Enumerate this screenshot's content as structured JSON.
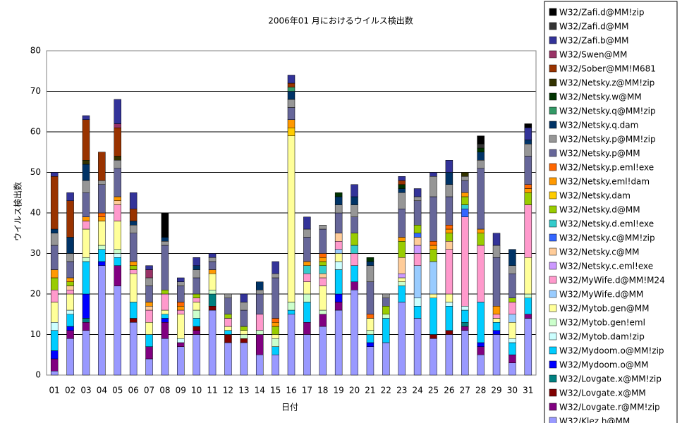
{
  "chart_data": {
    "type": "stacked_bar",
    "title": "2006年01 月におけるウイルス検出数",
    "y_label": "ウイルス検出数",
    "x_label": "日付",
    "categories": [
      "01",
      "02",
      "03",
      "04",
      "05",
      "06",
      "07",
      "08",
      "09",
      "10",
      "11",
      "12",
      "13",
      "14",
      "15",
      "16",
      "17",
      "18",
      "19",
      "20",
      "21",
      "22",
      "23",
      "24",
      "25",
      "26",
      "27",
      "28",
      "29",
      "30",
      "31"
    ],
    "ylim": [
      0,
      80
    ],
    "yticks": [
      0,
      10,
      20,
      30,
      40,
      50,
      60,
      70,
      80
    ],
    "grid": true,
    "legend": "right",
    "series": [
      {
        "name": "W32/Zafi.d@MM!zip",
        "color": "#000000",
        "values": [
          0,
          0,
          0,
          0,
          0,
          0,
          0,
          6,
          0,
          0,
          0,
          0,
          0,
          0,
          0,
          0,
          0,
          0,
          0,
          0,
          0,
          0,
          0,
          0,
          0,
          0,
          0,
          2,
          0,
          0,
          1
        ]
      },
      {
        "name": "W32/Zafi.d@MM",
        "color": "#333333",
        "values": [
          0,
          0,
          0,
          0,
          0,
          0,
          0,
          0,
          0,
          0,
          0,
          0,
          0,
          0,
          0,
          0,
          0,
          0,
          0,
          0,
          0,
          0,
          0,
          0,
          0,
          0,
          0,
          1,
          0,
          0,
          0
        ]
      },
      {
        "name": "W32/Zafi.b@MM",
        "color": "#333399",
        "values": [
          1,
          2,
          1,
          0,
          6,
          4,
          1,
          0,
          1,
          2,
          1,
          0,
          2,
          0,
          3,
          2,
          3,
          0,
          0,
          3,
          0,
          0,
          1,
          2,
          1,
          3,
          0,
          0,
          3,
          0,
          3
        ]
      },
      {
        "name": "W32/Swen@MM",
        "color": "#993366",
        "values": [
          0,
          0,
          0,
          0,
          1,
          0,
          2,
          0,
          0,
          0,
          0,
          0,
          0,
          0,
          0,
          0,
          0,
          0,
          0,
          0,
          0,
          0,
          0,
          0,
          0,
          0,
          0,
          0,
          0,
          0,
          0
        ]
      },
      {
        "name": "W32/Sober@MM!M681",
        "color": "#993300",
        "values": [
          13,
          9,
          10,
          7,
          7,
          3,
          0,
          0,
          0,
          0,
          0,
          0,
          0,
          0,
          0,
          1,
          0,
          0,
          0,
          0,
          0,
          0,
          1,
          0,
          0,
          0,
          0,
          0,
          0,
          0,
          0
        ]
      },
      {
        "name": "W32/Netsky.z@MM!zip",
        "color": "#333300",
        "values": [
          0,
          0,
          1,
          0,
          1,
          0,
          0,
          0,
          0,
          0,
          0,
          0,
          0,
          0,
          0,
          0,
          0,
          0,
          0,
          0,
          0,
          0,
          0,
          0,
          0,
          0,
          1,
          0,
          0,
          0,
          0
        ]
      },
      {
        "name": "W32/Netsky.w@MM",
        "color": "#003300",
        "values": [
          0,
          0,
          0,
          0,
          0,
          0,
          0,
          0,
          0,
          0,
          0,
          0,
          0,
          0,
          0,
          0,
          0,
          0,
          1,
          0,
          1,
          0,
          1,
          0,
          0,
          0,
          0,
          1,
          0,
          0,
          0
        ]
      },
      {
        "name": "W32/Netsky.q@MM!zip",
        "color": "#339966",
        "values": [
          0,
          0,
          0,
          0,
          0,
          0,
          0,
          0,
          0,
          0,
          0,
          0,
          0,
          0,
          0,
          1,
          0,
          0,
          0,
          0,
          0,
          0,
          0,
          0,
          0,
          0,
          0,
          0,
          0,
          0,
          0
        ]
      },
      {
        "name": "W32/Netsky.q.dam",
        "color": "#003366",
        "values": [
          1,
          4,
          4,
          0,
          0,
          1,
          0,
          1,
          0,
          1,
          0,
          0,
          0,
          2,
          0,
          2,
          0,
          0,
          2,
          2,
          1,
          0,
          1,
          0,
          0,
          3,
          0,
          2,
          0,
          4,
          1
        ]
      },
      {
        "name": "W32/Netsky.p@MM!zip",
        "color": "#969696",
        "values": [
          3,
          2,
          3,
          1,
          2,
          2,
          2,
          1,
          1,
          2,
          1,
          1,
          2,
          1,
          1,
          2,
          2,
          1,
          2,
          3,
          4,
          1,
          4,
          1,
          5,
          3,
          1,
          2,
          3,
          2,
          3
        ]
      },
      {
        "name": "W32/Netsky.p@MM",
        "color": "#666699",
        "values": [
          6,
          4,
          6,
          7,
          7,
          7,
          4,
          11,
          4,
          4,
          2,
          4,
          4,
          5,
          10,
          3,
          6,
          6,
          5,
          4,
          8,
          2,
          7,
          6,
          11,
          7,
          3,
          15,
          12,
          6,
          7
        ]
      },
      {
        "name": "W32/Netsky.p.eml!exe",
        "color": "#ff6600",
        "values": [
          0,
          0,
          0,
          1,
          0,
          0,
          0,
          0,
          1,
          0,
          0,
          0,
          0,
          0,
          1,
          0,
          0,
          1,
          0,
          0,
          1,
          0,
          0,
          0,
          1,
          1,
          0,
          0,
          0,
          0,
          1
        ]
      },
      {
        "name": "W32/Netsky.eml!dam",
        "color": "#ff9900",
        "values": [
          2,
          1,
          1,
          1,
          1,
          1,
          1,
          0,
          1,
          0,
          1,
          0,
          0,
          0,
          1,
          2,
          1,
          1,
          0,
          0,
          0,
          0,
          1,
          0,
          1,
          1,
          1,
          1,
          2,
          0,
          1
        ]
      },
      {
        "name": "W32/Netsky.dam",
        "color": "#ffcc00",
        "values": [
          0,
          0,
          0,
          0,
          0,
          0,
          0,
          0,
          0,
          0,
          0,
          0,
          0,
          0,
          0,
          2,
          0,
          0,
          0,
          0,
          0,
          0,
          0,
          0,
          0,
          0,
          0,
          0,
          0,
          0,
          0
        ]
      },
      {
        "name": "W32/Netsky.d@MM",
        "color": "#99cc00",
        "values": [
          3,
          1,
          0,
          0,
          0,
          1,
          0,
          1,
          0,
          1,
          0,
          1,
          1,
          0,
          2,
          0,
          0,
          1,
          0,
          3,
          0,
          2,
          4,
          2,
          3,
          2,
          2,
          3,
          0,
          1,
          3
        ]
      },
      {
        "name": "W32/Netsky.d.eml!exe",
        "color": "#33cccc",
        "values": [
          0,
          0,
          0,
          0,
          0,
          0,
          0,
          0,
          0,
          0,
          0,
          0,
          0,
          0,
          0,
          0,
          2,
          2,
          0,
          2,
          0,
          0,
          0,
          0,
          0,
          0,
          1,
          0,
          0,
          0,
          0
        ]
      },
      {
        "name": "W32/Netsky.c@MM!zip",
        "color": "#3366ff",
        "values": [
          0,
          0,
          0,
          0,
          0,
          0,
          0,
          0,
          0,
          0,
          0,
          0,
          0,
          0,
          0,
          0,
          0,
          0,
          0,
          0,
          0,
          0,
          0,
          1,
          0,
          0,
          2,
          0,
          0,
          0,
          0
        ]
      },
      {
        "name": "W32/Netsky.c@MM",
        "color": "#ffcc99",
        "values": [
          0,
          1,
          0,
          0,
          1,
          0,
          1,
          0,
          0,
          0,
          0,
          0,
          0,
          0,
          0,
          0,
          0,
          1,
          2,
          0,
          0,
          0,
          4,
          2,
          0,
          2,
          0,
          0,
          0,
          0,
          0
        ]
      },
      {
        "name": "W32/Netsky.c.eml!exe",
        "color": "#cc99ff",
        "values": [
          0,
          0,
          0,
          0,
          0,
          0,
          0,
          0,
          0,
          0,
          0,
          0,
          0,
          0,
          0,
          0,
          0,
          0,
          0,
          0,
          0,
          0,
          1,
          2,
          0,
          0,
          0,
          0,
          0,
          0,
          0
        ]
      },
      {
        "name": "W32/MyWife.d@MM!M24",
        "color": "#ff99cc",
        "values": [
          3,
          1,
          2,
          0,
          4,
          1,
          3,
          4,
          1,
          1,
          0,
          2,
          0,
          4,
          0,
          0,
          2,
          2,
          2,
          3,
          0,
          0,
          0,
          3,
          0,
          11,
          22,
          14,
          1,
          3,
          13
        ]
      },
      {
        "name": "W32/MyWife.d@MM",
        "color": "#99ccff",
        "values": [
          0,
          0,
          0,
          0,
          0,
          0,
          0,
          0,
          0,
          0,
          0,
          0,
          0,
          0,
          0,
          0,
          0,
          0,
          1,
          0,
          0,
          0,
          0,
          8,
          8,
          0,
          0,
          0,
          0,
          2,
          0
        ]
      },
      {
        "name": "W32/Mytob.gen@MM",
        "color": "#ffff99",
        "values": [
          5,
          4,
          7,
          6,
          7,
          7,
          3,
          1,
          6,
          2,
          4,
          1,
          1,
          0,
          1,
          41,
          3,
          6,
          2,
          0,
          3,
          0,
          1,
          0,
          1,
          2,
          0,
          0,
          1,
          4,
          9
        ]
      },
      {
        "name": "W32/Mytob.gen!eml",
        "color": "#ccffcc",
        "values": [
          0,
          0,
          1,
          1,
          1,
          0,
          0,
          0,
          0,
          2,
          1,
          0,
          1,
          1,
          2,
          2,
          2,
          1,
          0,
          0,
          1,
          1,
          1,
          0,
          0,
          0,
          0,
          0,
          0,
          0,
          1
        ]
      },
      {
        "name": "W32/Mytob.dam!zip",
        "color": "#ccffff",
        "values": [
          2,
          1,
          0,
          0,
          1,
          0,
          0,
          0,
          1,
          0,
          0,
          0,
          0,
          0,
          0,
          0,
          0,
          0,
          2,
          0,
          0,
          0,
          0,
          2,
          0,
          1,
          1,
          0,
          0,
          1,
          0
        ]
      },
      {
        "name": "W32/Mydoom.o@MM!zip",
        "color": "#00ccff",
        "values": [
          5,
          3,
          8,
          3,
          2,
          4,
          3,
          1,
          0,
          2,
          0,
          1,
          0,
          0,
          2,
          1,
          5,
          0,
          6,
          4,
          2,
          6,
          4,
          3,
          9,
          6,
          3,
          10,
          2,
          3,
          4
        ]
      },
      {
        "name": "W32/Mydoom.o@MM",
        "color": "#0000ff",
        "values": [
          2,
          1,
          6,
          1,
          0,
          0,
          0,
          1,
          0,
          0,
          0,
          0,
          0,
          0,
          0,
          0,
          0,
          0,
          2,
          0,
          1,
          0,
          0,
          0,
          0,
          0,
          0,
          1,
          1,
          0,
          0
        ]
      },
      {
        "name": "W32/Lovgate.x@MM!zip",
        "color": "#008080",
        "values": [
          0,
          0,
          1,
          0,
          0,
          0,
          0,
          0,
          0,
          0,
          3,
          0,
          0,
          0,
          0,
          0,
          0,
          0,
          0,
          0,
          0,
          0,
          0,
          0,
          0,
          0,
          1,
          0,
          0,
          0,
          0
        ]
      },
      {
        "name": "W32/Lovgate.x@MM",
        "color": "#800000",
        "values": [
          0,
          0,
          0,
          0,
          0,
          1,
          0,
          0,
          0,
          1,
          1,
          2,
          1,
          0,
          0,
          0,
          0,
          0,
          0,
          0,
          0,
          0,
          0,
          0,
          1,
          1,
          0,
          0,
          0,
          0,
          0
        ]
      },
      {
        "name": "W32/Lovgate.r@MM!zip",
        "color": "#800080",
        "values": [
          3,
          2,
          2,
          0,
          5,
          0,
          3,
          4,
          1,
          1,
          0,
          0,
          0,
          5,
          0,
          0,
          3,
          3,
          2,
          2,
          0,
          0,
          0,
          0,
          0,
          0,
          1,
          2,
          0,
          2,
          1
        ]
      },
      {
        "name": "W32/Klez.h@MM",
        "color": "#9999ff",
        "values": [
          1,
          9,
          11,
          27,
          22,
          13,
          4,
          9,
          7,
          10,
          16,
          8,
          8,
          5,
          5,
          15,
          10,
          12,
          16,
          21,
          7,
          8,
          18,
          14,
          9,
          10,
          11,
          5,
          10,
          3,
          14
        ]
      }
    ]
  }
}
